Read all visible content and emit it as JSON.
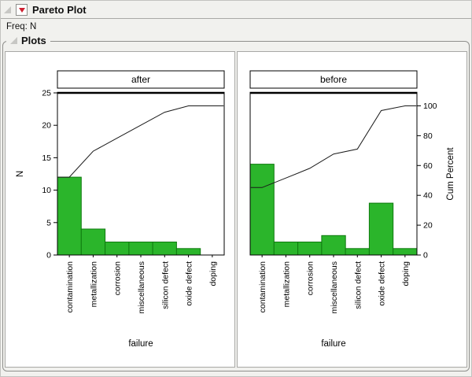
{
  "header": {
    "title": "Pareto Plot",
    "freq_label": "Freq: N"
  },
  "plots_section": {
    "title": "Plots"
  },
  "colors": {
    "bar_fill": "#2bb52b",
    "bar_stroke": "#0f7a0f",
    "cum_line": "#1a1a1a",
    "frame": "#000000",
    "red_triangle": "#cf2030",
    "disclosure": "#c7c7c4",
    "panel_background": "#ffffff",
    "window_background": "#f1f1ee"
  },
  "chart_data": {
    "type": "bar",
    "kind": "pareto",
    "title": "Pareto Plot",
    "categories": [
      "contamination",
      "metallization",
      "corrosion",
      "miscellaneous",
      "silicon defect",
      "oxide defect",
      "doping"
    ],
    "xlabel": "failure",
    "grid": false,
    "legend": "none",
    "left_axis": {
      "label": "N",
      "ticks": [
        0,
        5,
        10,
        15,
        20,
        25
      ],
      "range": [
        0,
        25
      ]
    },
    "right_axis": {
      "label": "Cum Percent",
      "ticks": [
        0,
        20,
        40,
        60,
        80,
        100
      ],
      "range": [
        0,
        100
      ],
      "top_percent_at_N": 23
    },
    "panels": [
      {
        "title": "after",
        "values": [
          12,
          4,
          2,
          2,
          2,
          1,
          0
        ],
        "total": 23,
        "cum_percent": [
          52.2,
          69.6,
          78.3,
          87.0,
          95.7,
          100,
          100
        ]
      },
      {
        "title": "before",
        "values": [
          14,
          2,
          2,
          3,
          1,
          8,
          1
        ],
        "total": 31,
        "cum_percent": [
          45.2,
          51.6,
          58.1,
          67.7,
          71.0,
          96.8,
          100
        ]
      }
    ]
  }
}
